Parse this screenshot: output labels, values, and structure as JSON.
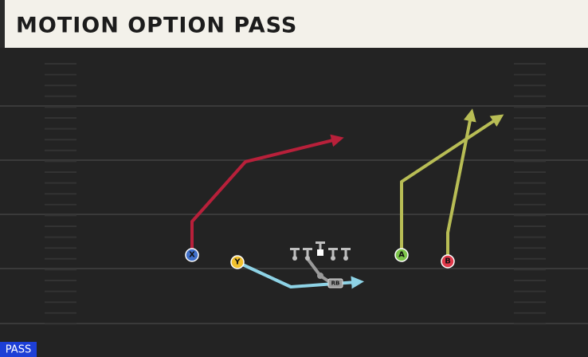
{
  "title": "MOTION OPTION PASS",
  "players": [
    {
      "label": "X"
    },
    {
      "label": "Y"
    },
    {
      "label": "A"
    },
    {
      "label": "B"
    },
    {
      "label": "RB"
    }
  ],
  "play_type": "PASS"
}
